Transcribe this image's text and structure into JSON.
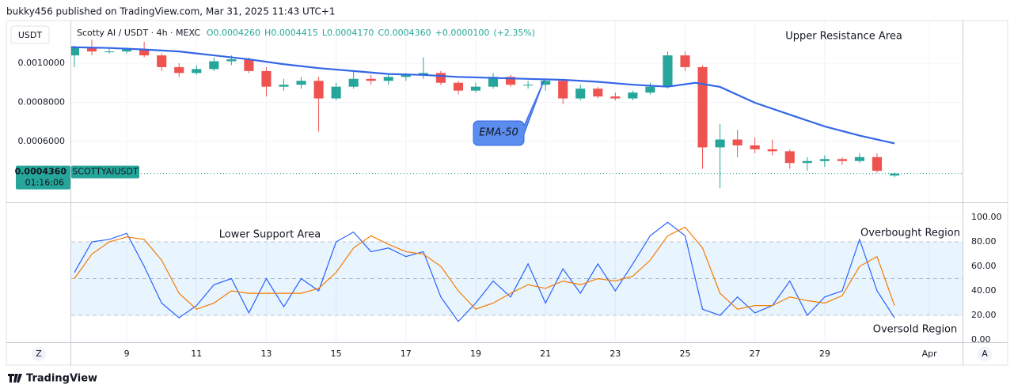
{
  "header": "bukky456 published on TradingView.com, Mar 31, 2025 11:43 UTC+1",
  "currency": "USDT",
  "button_left": "Z",
  "button_right": "A",
  "brand": "TradingView",
  "chart_data": [
    {
      "type": "candlestick",
      "title": "Scotty AI / USDT · 4h · MEXC",
      "legend_values": [
        {
          "value": 0.000426,
          "label": "O0.0004260"
        },
        {
          "value": 0.0004415,
          "label": "H0.0004415"
        },
        {
          "value": 0.000417,
          "label": "L0.0004170"
        },
        {
          "value": 0.000436,
          "label": "C0.0004360"
        },
        {
          "value": 1e-05,
          "label": "+0.0000100"
        },
        {
          "value": 2.35,
          "label": "(+2.35%)"
        }
      ],
      "x": [
        7.5,
        8,
        8.5,
        9,
        9.5,
        10,
        10.5,
        11,
        11.5,
        12,
        12.5,
        13,
        13.5,
        14,
        14.5,
        15,
        15.5,
        16,
        16.5,
        17,
        17.5,
        18,
        18.5,
        19,
        19.5,
        20,
        20.5,
        21,
        21.5,
        22,
        22.5,
        23,
        23.5,
        24,
        24.5,
        25,
        25.5,
        26,
        26.5,
        27,
        27.5,
        28,
        28.5,
        29,
        29.5,
        30,
        30.5,
        31
      ],
      "open": [
        0.00104,
        0.00108,
        0.00106,
        0.00106,
        0.00107,
        0.00104,
        0.00098,
        0.00095,
        0.00097,
        0.00101,
        0.00102,
        0.00096,
        0.00088,
        0.00089,
        0.00091,
        0.00082,
        0.00088,
        0.00092,
        0.00091,
        0.00093,
        0.00094,
        0.00095,
        0.0009,
        0.00086,
        0.00088,
        0.00093,
        0.00089,
        0.00089,
        0.00091,
        0.00082,
        0.00087,
        0.00083,
        0.00082,
        0.00085,
        0.00088,
        0.00104,
        0.00098,
        0.00057,
        0.00061,
        0.00058,
        0.00056,
        0.00055,
        0.00049,
        0.0005,
        0.00051,
        0.0005,
        0.00052,
        0.000426
      ],
      "high": [
        0.00109,
        0.00112,
        0.00108,
        0.00108,
        0.00111,
        0.00105,
        0.001,
        0.00099,
        0.00103,
        0.00104,
        0.00103,
        0.00098,
        0.00092,
        0.00093,
        0.00093,
        0.0009,
        0.00096,
        0.00094,
        0.00094,
        0.00095,
        0.00103,
        0.00096,
        0.00091,
        0.0009,
        0.00095,
        0.00094,
        0.00091,
        0.00092,
        0.00092,
        0.00089,
        0.00088,
        0.00085,
        0.00086,
        0.0009,
        0.00106,
        0.00106,
        0.00099,
        0.00069,
        0.00066,
        0.00062,
        0.00061,
        0.00056,
        0.00052,
        0.00053,
        0.00052,
        0.00054,
        0.00054,
        0.0004415
      ],
      "low": [
        0.00098,
        0.00104,
        0.00105,
        0.00105,
        0.00103,
        0.00096,
        0.00093,
        0.00094,
        0.00096,
        0.00099,
        0.00095,
        0.00083,
        0.00086,
        0.00087,
        0.00065,
        0.00081,
        0.00087,
        0.00089,
        0.00089,
        0.00091,
        0.00092,
        0.00089,
        0.00084,
        0.00085,
        0.00087,
        0.00088,
        0.00087,
        0.00086,
        0.00079,
        0.00081,
        0.00082,
        0.00081,
        0.00081,
        0.00084,
        0.00087,
        0.00096,
        0.00046,
        0.00036,
        0.00052,
        0.00054,
        0.00053,
        0.00046,
        0.00045,
        0.00047,
        0.00048,
        0.00049,
        0.00044,
        0.000417
      ],
      "close": [
        0.00108,
        0.00106,
        0.00106,
        0.00107,
        0.00104,
        0.00098,
        0.00095,
        0.00097,
        0.00101,
        0.00102,
        0.00096,
        0.00088,
        0.00089,
        0.00091,
        0.00082,
        0.00088,
        0.00092,
        0.00091,
        0.00093,
        0.00094,
        0.00095,
        0.0009,
        0.00086,
        0.00088,
        0.00093,
        0.00089,
        0.00089,
        0.00091,
        0.00082,
        0.00087,
        0.00083,
        0.00082,
        0.00085,
        0.00088,
        0.00104,
        0.00098,
        0.00057,
        0.00061,
        0.00058,
        0.00056,
        0.00055,
        0.00049,
        0.0005,
        0.00051,
        0.0005,
        0.00052,
        0.00045,
        0.000436
      ],
      "up_color": "#26a69a",
      "down_color": "#ef5350",
      "ema": {
        "name": "EMA-50",
        "color": "#3366e6",
        "x": [
          7.4,
          8.5,
          9.5,
          10.5,
          11.5,
          12.5,
          13.5,
          14.5,
          15.5,
          16.5,
          17.5,
          18.5,
          19.5,
          20.5,
          21.5,
          22.5,
          23.5,
          24.5,
          25.3,
          26,
          27,
          28,
          29,
          30,
          31
        ],
        "values": [
          0.001082,
          0.001078,
          0.00107,
          0.00106,
          0.00104,
          0.00102,
          0.000995,
          0.000975,
          0.00096,
          0.000945,
          0.00094,
          0.00093,
          0.000925,
          0.00092,
          0.000915,
          0.000905,
          0.00089,
          0.00088,
          0.0009,
          0.000879,
          0.000798,
          0.000737,
          0.000677,
          0.00063,
          0.00059
        ]
      },
      "last_price": {
        "value": 0.000436,
        "label": "0.0004360"
      },
      "countdown": "01:16:06",
      "symbol_tag": "SCOTTYAIUSDT",
      "annotations": [
        "Upper Resistance Area"
      ],
      "xlim": [
        7.41,
        32.95
      ],
      "xticks": [
        9,
        11,
        13,
        15,
        17,
        19,
        21,
        23,
        25,
        27,
        29,
        {
          "value": 32,
          "label": "Apr"
        }
      ],
      "ylim": [
        0.000293,
        0.00121
      ],
      "yticks": [
        {
          "value": 0.0006,
          "label": "0.0006000"
        },
        {
          "value": 0.0008,
          "label": "0.0008000"
        },
        {
          "value": 0.001,
          "label": "0.0010000"
        }
      ],
      "grid": true
    },
    {
      "type": "line",
      "x": [
        7.5,
        8,
        8.5,
        9,
        9.5,
        10,
        10.5,
        11,
        11.5,
        12,
        12.5,
        13,
        13.5,
        14,
        14.5,
        15,
        15.5,
        16,
        16.5,
        17,
        17.5,
        18,
        18.5,
        19,
        19.5,
        20,
        20.5,
        21,
        21.5,
        22,
        22.5,
        23,
        23.5,
        24,
        24.5,
        25,
        25.5,
        26,
        26.5,
        27,
        27.5,
        28,
        28.5,
        29,
        29.5,
        30,
        30.5,
        31
      ],
      "series": [
        {
          "color": "#2962ff",
          "values": [
            55,
            80,
            82,
            87,
            60,
            30,
            18,
            28,
            45,
            50,
            22,
            50,
            27,
            50,
            40,
            80,
            88,
            72,
            75,
            68,
            72,
            35,
            15,
            30,
            48,
            35,
            62,
            30,
            58,
            38,
            62,
            40,
            62,
            85,
            96,
            85,
            25,
            20,
            35,
            22,
            28,
            48,
            20,
            35,
            40,
            82,
            40,
            18
          ]
        },
        {
          "color": "#f57c00",
          "values": [
            50,
            70,
            80,
            84,
            82,
            65,
            38,
            25,
            30,
            40,
            38,
            38,
            38,
            38,
            42,
            55,
            75,
            85,
            78,
            72,
            70,
            60,
            40,
            25,
            30,
            38,
            45,
            42,
            48,
            45,
            50,
            48,
            52,
            65,
            85,
            92,
            75,
            38,
            25,
            28,
            28,
            35,
            32,
            30,
            36,
            60,
            68,
            28
          ]
        }
      ],
      "band": [
        20,
        80
      ],
      "levels": [
        20,
        50,
        80
      ],
      "annotations": [
        "Lower Support Area",
        "Overbought Region",
        "Oversold Region"
      ],
      "xlim": [
        7.41,
        32.95
      ],
      "ylim": [
        -1.3,
        111
      ],
      "yticks": [
        {
          "value": 0,
          "label": "0.00"
        },
        {
          "value": 20,
          "label": "20.00"
        },
        {
          "value": 40,
          "label": "40.00"
        },
        {
          "value": 60,
          "label": "60.00"
        },
        {
          "value": 80,
          "label": "80.00"
        },
        {
          "value": 100,
          "label": "100.00"
        }
      ]
    }
  ]
}
